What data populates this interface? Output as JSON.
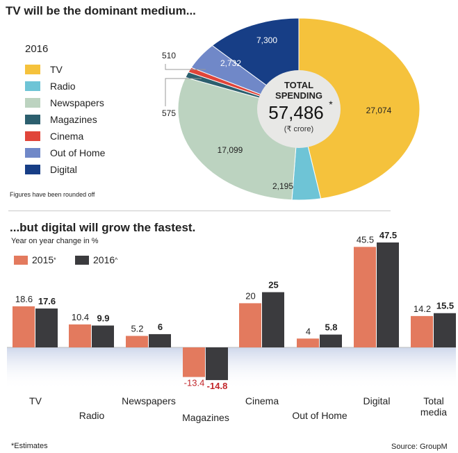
{
  "chart_data": [
    {
      "type": "pie",
      "title": "TV will be the dominant medium...",
      "legend_title": "2016",
      "legend_placement": "left",
      "slices": [
        {
          "label": "TV",
          "value": 27074,
          "value_label": "27,074",
          "color": "#f5c23c"
        },
        {
          "label": "Radio",
          "value": 2195,
          "value_label": "2,195",
          "color": "#6ec4d6"
        },
        {
          "label": "Newspapers",
          "value": 17099,
          "value_label": "17,099",
          "color": "#bcd3c0"
        },
        {
          "label": "Magazines",
          "value": 575,
          "value_label": "575",
          "color": "#2c5f6e"
        },
        {
          "label": "Cinema",
          "value": 510,
          "value_label": "510",
          "color": "#e0453a"
        },
        {
          "label": "Out of Home",
          "value": 2732,
          "value_label": "2,732",
          "color": "#7088c8"
        },
        {
          "label": "Digital",
          "value": 7300,
          "value_label": "7,300",
          "color": "#173e86"
        }
      ],
      "center": {
        "line1": "TOTAL",
        "line2": "SPENDING",
        "value": "57,486",
        "star": "*",
        "unit": "(₹ crore)"
      },
      "note": "Figures have been rounded off"
    },
    {
      "type": "bar",
      "title": "...but digital will grow the fastest.",
      "ylabel": "Year on year change in %",
      "categories": [
        "TV",
        "Radio",
        "Newspapers",
        "Magazines",
        "Cinema",
        "Out of Home",
        "Digital",
        "Total media"
      ],
      "category_labels": [
        [
          "TV"
        ],
        [
          "Radio"
        ],
        [
          "Newspapers"
        ],
        [
          "Magazines"
        ],
        [
          "Cinema"
        ],
        [
          "Out of Home"
        ],
        [
          "Digital"
        ],
        [
          "Total",
          "media"
        ]
      ],
      "series": [
        {
          "name": "2015",
          "marker": "*",
          "color": "#e37a5e",
          "values": [
            18.6,
            10.4,
            5.2,
            -13.4,
            20,
            4,
            45.5,
            14.2
          ],
          "labels": [
            "18.6",
            "10.4",
            "5.2",
            "-13.4",
            "20",
            "4",
            "45.5",
            "14.2"
          ]
        },
        {
          "name": "2016",
          "marker": "^",
          "color": "#3b3b3e",
          "values": [
            17.6,
            9.9,
            6,
            -14.8,
            25,
            5.8,
            47.5,
            15.5
          ],
          "labels": [
            "17.6",
            "9.9",
            "6",
            "-14.8",
            "25",
            "5.8",
            "47.5",
            "15.5"
          ]
        }
      ],
      "negative_label_color": "#c2262a",
      "ylim": [
        -15,
        50
      ],
      "grid": false,
      "legend_placement": "top-left"
    }
  ],
  "footer": {
    "footnote": "*Estimates",
    "source": "Source: GroupM"
  }
}
